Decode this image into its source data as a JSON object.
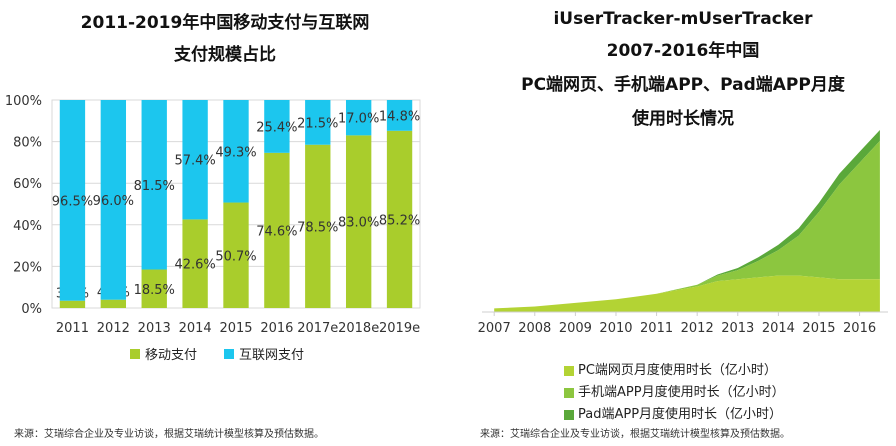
{
  "left_panel": {
    "title_line1": "2011-2019年中国移动支付与互联网",
    "title_line2": "支付规模占比",
    "source": "来源：艾瑞综合企业及专业访谈，根据艾瑞统计模型核算及预估数据。"
  },
  "right_panel": {
    "title_line1": "iUserTracker-mUserTracker",
    "title_line2": "2007-2016年中国",
    "title_line3": "PC端网页、手机端APP、Pad端APP月度",
    "title_line4": "使用时长情况",
    "source": "来源：艾瑞综合企业及专业访谈，根据艾瑞统计模型核算及预估数据。"
  },
  "colors": {
    "mobile": "#a9cd2c",
    "internet": "#1cc6ee",
    "pc": "#b3d334",
    "phone_app": "#8cc63f",
    "pad_app": "#5aa83a"
  },
  "chart_data": [
    {
      "type": "bar",
      "stacked": true,
      "title": "2011-2019年中国移动支付与互联网支付规模占比",
      "categories": [
        "2011",
        "2012",
        "2013",
        "2014",
        "2015",
        "2016",
        "2017e",
        "2018e",
        "2019e"
      ],
      "series": [
        {
          "name": "移动支付",
          "values": [
            3.5,
            4.0,
            18.5,
            42.6,
            50.7,
            74.6,
            78.5,
            83.0,
            85.2
          ],
          "labels": [
            "3.5%",
            "4.0%",
            "18.5%",
            "42.6%",
            "50.7%",
            "74.6%",
            "78.5%",
            "83.0%",
            "85.2%"
          ]
        },
        {
          "name": "互联网支付",
          "values": [
            96.5,
            96.0,
            81.5,
            57.4,
            49.3,
            25.4,
            21.5,
            17.0,
            14.8
          ],
          "labels": [
            "96.5%",
            "96.0%",
            "81.5%",
            "57.4%",
            "49.3%",
            "25.4%",
            "21.5%",
            "17.0%",
            "14.8%"
          ]
        }
      ],
      "ylim": [
        0,
        100
      ],
      "yticks": [
        "0%",
        "20%",
        "40%",
        "60%",
        "80%",
        "100%"
      ],
      "grid": true,
      "legend": "bottom"
    },
    {
      "type": "area",
      "stacked": true,
      "title": "iUserTracker-mUserTracker 2007-2016年中国PC端网页、手机端APP、Pad端APP月度使用时长情况",
      "x_ticks": [
        "2007",
        "2008",
        "2009",
        "2010",
        "2011",
        "2012",
        "2013",
        "2014",
        "2015",
        "2016"
      ],
      "x": [
        2007,
        2008,
        2009,
        2010,
        2011,
        2012,
        2012.5,
        2013,
        2013.5,
        2014,
        2014.5,
        2015,
        2015.5,
        2016,
        2016.5
      ],
      "series": [
        {
          "name": "PC端网页月度使用时长（亿小时）",
          "values": [
            1.0,
            1.5,
            2.5,
            3.5,
            5.0,
            7.0,
            8.5,
            9.0,
            9.5,
            10.0,
            10.0,
            9.5,
            9.0,
            9.0,
            9.0
          ]
        },
        {
          "name": "手机端APP月度使用时长（亿小时）",
          "values": [
            0.0,
            0.0,
            0.0,
            0.0,
            0.0,
            0.5,
            1.5,
            2.5,
            4.5,
            7.0,
            11.0,
            18.0,
            26.0,
            32.0,
            38.0
          ]
        },
        {
          "name": "Pad端APP月度使用时长（亿小时）",
          "values": [
            0.0,
            0.0,
            0.0,
            0.0,
            0.0,
            0.0,
            0.3,
            0.6,
            1.0,
            1.5,
            2.0,
            2.5,
            3.0,
            3.0,
            3.0
          ]
        }
      ],
      "axis_labels_shown": false,
      "legend": "bottom"
    }
  ]
}
